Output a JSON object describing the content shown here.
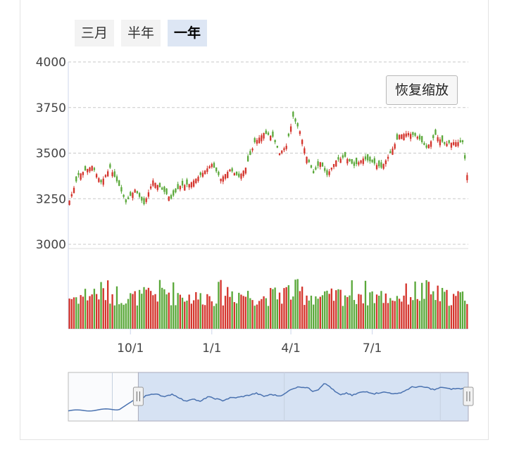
{
  "tabs": [
    {
      "label": "三月",
      "active": false
    },
    {
      "label": "半年",
      "active": false
    },
    {
      "label": "一年",
      "active": true
    }
  ],
  "reset_zoom_label": "恢复缩放",
  "colors": {
    "up": "#d4342c",
    "down": "#5aa83a",
    "grid": "#c8c8c8",
    "navigator_line": "#4a72b0",
    "navigator_fill": "#d6e2f3"
  },
  "chart_data": {
    "type": "candlestick",
    "y_axis": {
      "min": 3000,
      "max": 4000,
      "ticks": [
        4000,
        3750,
        3500,
        3250,
        3000
      ]
    },
    "x_axis": {
      "tick_labels": [
        "10/1",
        "1/1",
        "4/1",
        "7/1"
      ]
    },
    "price_path": [
      {
        "t": 0,
        "v": 3240
      },
      {
        "t": 4,
        "v": 3380
      },
      {
        "t": 10,
        "v": 3430
      },
      {
        "t": 14,
        "v": 3340
      },
      {
        "t": 18,
        "v": 3420
      },
      {
        "t": 22,
        "v": 3320
      },
      {
        "t": 25,
        "v": 3230
      },
      {
        "t": 29,
        "v": 3300
      },
      {
        "t": 33,
        "v": 3220
      },
      {
        "t": 37,
        "v": 3350
      },
      {
        "t": 41,
        "v": 3300
      },
      {
        "t": 45,
        "v": 3250
      },
      {
        "t": 49,
        "v": 3320
      },
      {
        "t": 53,
        "v": 3330
      },
      {
        "t": 58,
        "v": 3380
      },
      {
        "t": 63,
        "v": 3440
      },
      {
        "t": 67,
        "v": 3360
      },
      {
        "t": 71,
        "v": 3410
      },
      {
        "t": 75,
        "v": 3370
      },
      {
        "t": 78,
        "v": 3420
      },
      {
        "t": 82,
        "v": 3560
      },
      {
        "t": 86,
        "v": 3610
      },
      {
        "t": 90,
        "v": 3590
      },
      {
        "t": 93,
        "v": 3500
      },
      {
        "t": 96,
        "v": 3540
      },
      {
        "t": 99,
        "v": 3700
      },
      {
        "t": 102,
        "v": 3620
      },
      {
        "t": 105,
        "v": 3480
      },
      {
        "t": 108,
        "v": 3390
      },
      {
        "t": 111,
        "v": 3450
      },
      {
        "t": 114,
        "v": 3380
      },
      {
        "t": 118,
        "v": 3460
      },
      {
        "t": 122,
        "v": 3480
      },
      {
        "t": 126,
        "v": 3430
      },
      {
        "t": 130,
        "v": 3470
      },
      {
        "t": 134,
        "v": 3450
      },
      {
        "t": 138,
        "v": 3420
      },
      {
        "t": 142,
        "v": 3500
      },
      {
        "t": 146,
        "v": 3600
      },
      {
        "t": 150,
        "v": 3610
      },
      {
        "t": 154,
        "v": 3590
      },
      {
        "t": 158,
        "v": 3530
      },
      {
        "t": 162,
        "v": 3600
      },
      {
        "t": 166,
        "v": 3550
      },
      {
        "t": 170,
        "v": 3560
      },
      {
        "t": 174,
        "v": 3560
      },
      {
        "t": 176,
        "v": 3380
      }
    ],
    "tick_positions": [
      27,
      63,
      98,
      134
    ],
    "volume_range": [
      0.45,
      1.0
    ],
    "navigator": {
      "start_fraction": 0.175,
      "end_fraction": 1.0
    }
  }
}
